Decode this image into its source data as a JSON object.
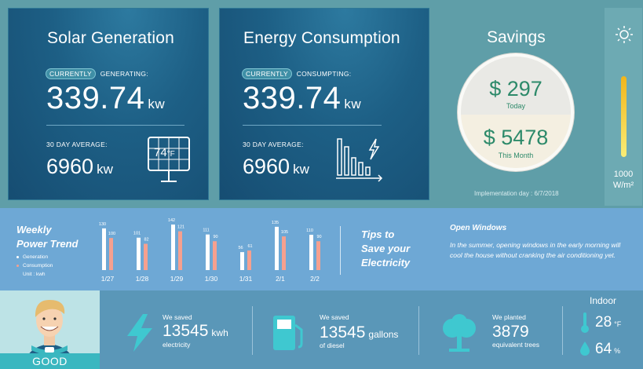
{
  "solar": {
    "title": "Solar Generation",
    "currently": "CURRENTLY",
    "status_label": "GENERATING:",
    "value": "339.74",
    "unit": "kw",
    "avg_label": "30 DAY AVERAGE:",
    "avg_value": "6960",
    "avg_unit": "kw",
    "panel_temp": "74",
    "panel_temp_unit": "°F"
  },
  "consumption": {
    "title": "Energy Consumption",
    "currently": "CURRENTLY",
    "status_label": "CONSUMPTING:",
    "value": "339.74",
    "unit": "kw",
    "avg_label": "30 DAY AVERAGE:",
    "avg_value": "6960",
    "avg_unit": "kw"
  },
  "savings": {
    "title": "Savings",
    "today_value": "$ 297",
    "today_label": "Today",
    "month_value": "$ 5478",
    "month_label": "This Month",
    "implementation": "Implementation day : 6/7/2018"
  },
  "irradiance": {
    "value": "1000",
    "unit": "W/m²",
    "level": 0.78
  },
  "trend": {
    "title": "Weekly\nPower Trend",
    "legend_generation": "Generation",
    "legend_consumption": "Consumption",
    "unit_label": "Unit : kwh"
  },
  "chart_data": {
    "type": "bar",
    "categories": [
      "1/27",
      "1/28",
      "1/29",
      "1/30",
      "1/31",
      "2/1",
      "2/2"
    ],
    "series": [
      {
        "name": "Generation",
        "values": [
          130,
          101,
          142,
          111,
          56,
          135,
          110
        ],
        "color": "#ffffff"
      },
      {
        "name": "Consumption",
        "values": [
          100,
          82,
          121,
          90,
          61,
          105,
          90
        ],
        "color": "#f6a08f"
      }
    ],
    "ylim": [
      0,
      142
    ]
  },
  "tips": {
    "title": "Tips to\nSave your\nElectricity",
    "heading": "Open Windows",
    "body": "In the summer, opening windows in the early morning will cool the house without cranking the air conditioning yet."
  },
  "status": {
    "label": "GOOD"
  },
  "stats": [
    {
      "label": "We saved",
      "value": "13545",
      "unit": "kwh",
      "sub": "electricity",
      "icon": "lightning-icon"
    },
    {
      "label": "We saved",
      "value": "13545",
      "unit": "gallons",
      "sub": "of diesel",
      "icon": "fuel-pump-icon"
    },
    {
      "label": "We planted",
      "value": "3879",
      "unit": "",
      "sub": "equivalent trees",
      "icon": "tree-icon"
    }
  ],
  "indoor": {
    "title": "Indoor",
    "temperature": "28",
    "temperature_unit": "°F",
    "humidity": "64",
    "humidity_unit": "%"
  },
  "colors": {
    "accent": "#3fc8d0",
    "panel": "#1d5f85",
    "savings_text": "#2d8a6a",
    "consumption_bar": "#f6a08f",
    "trend_band": "#6ea8d5",
    "bottom_band": "#5a97b8"
  }
}
